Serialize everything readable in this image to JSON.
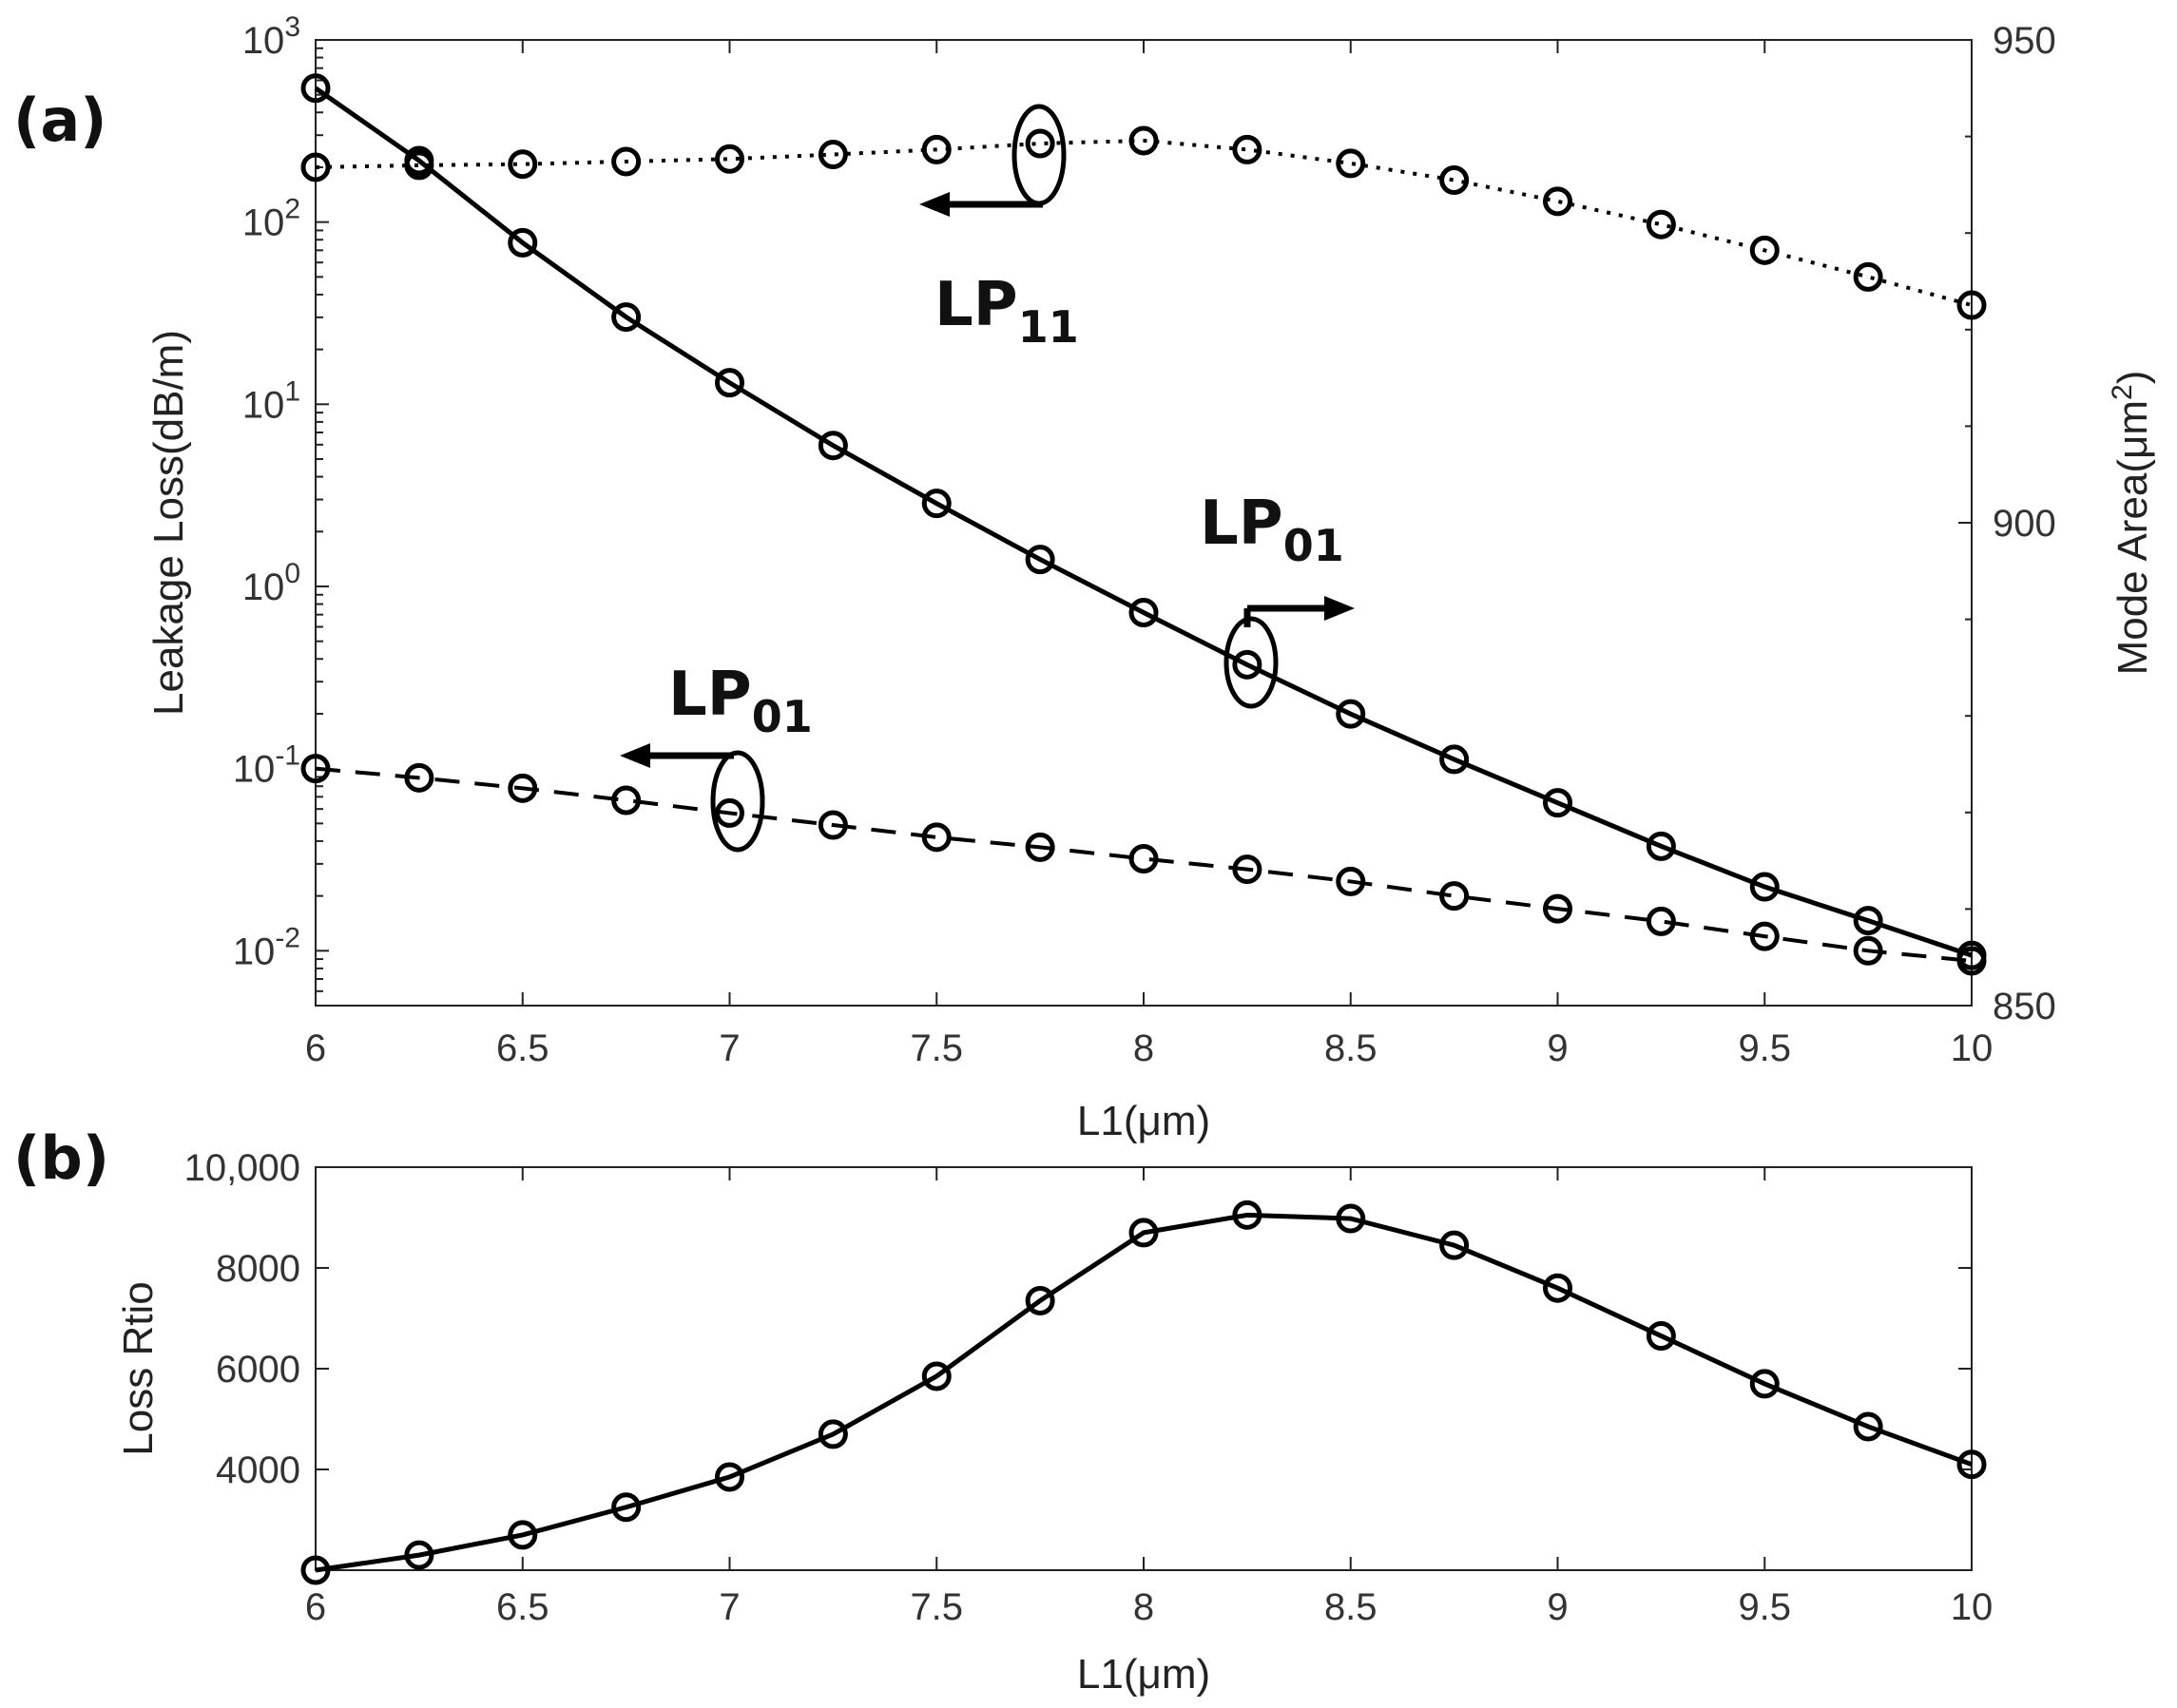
{
  "colors": {
    "line": "#000000",
    "axis": "#222222",
    "tick_text": "#333333",
    "background": "#ffffff"
  },
  "chart_data": [
    {
      "panel_label": "(a)",
      "type": "line",
      "xlabel": "L1(μm)",
      "ylabel_left": "Leakage Loss(dB/m)",
      "ylabel_right": "Mode Area(μm²)",
      "ylabel_right_parts": {
        "base": "Mode Area(μm",
        "sup": "2",
        "close": ")"
      },
      "xlim": [
        6,
        10
      ],
      "ylim_left": [
        0.005,
        1000
      ],
      "yscale_left": "log",
      "ylim_right": [
        850,
        950
      ],
      "x_ticks": [
        "6",
        "6.5",
        "7",
        "7.5",
        "8",
        "8.5",
        "9",
        "9.5",
        "10"
      ],
      "y_ticks_left": [
        {
          "base": "10",
          "exp": "3",
          "value": 1000
        },
        {
          "base": "10",
          "exp": "2",
          "value": 100
        },
        {
          "base": "10",
          "exp": "1",
          "value": 10
        },
        {
          "base": "10",
          "exp": "0",
          "value": 1
        },
        {
          "base": "10",
          "exp": "-1",
          "value": 0.1
        },
        {
          "base": "10",
          "exp": "-2",
          "value": 0.01
        }
      ],
      "y_ticks_right": [
        "950",
        "900",
        "850"
      ],
      "x": [
        6,
        6.25,
        6.5,
        6.75,
        7,
        7.25,
        7.5,
        7.75,
        8,
        8.25,
        8.5,
        8.75,
        9,
        9.25,
        9.5,
        9.75,
        10
      ],
      "series": [
        {
          "name": "LP11 leakage loss",
          "axis": "left",
          "style": "dotted",
          "values": [
            200,
            205,
            208,
            215,
            222,
            235,
            250,
            270,
            280,
            250,
            210,
            170,
            130,
            97,
            70,
            50,
            35
          ]
        },
        {
          "name": "LP01 leakage loss",
          "axis": "left",
          "style": "dashed",
          "values": [
            0.1,
            0.089,
            0.078,
            0.067,
            0.057,
            0.049,
            0.042,
            0.037,
            0.032,
            0.028,
            0.024,
            0.02,
            0.017,
            0.0145,
            0.012,
            0.01,
            0.0088
          ]
        },
        {
          "name": "LP01 mode area",
          "axis": "right",
          "style": "solid",
          "values": [
            945,
            937.5,
            929,
            921.3,
            914.5,
            908,
            902,
            896.2,
            890.7,
            885.3,
            880.2,
            875.5,
            871,
            866.5,
            862.3,
            858.8,
            855.2
          ]
        }
      ],
      "annotations": [
        {
          "base": "LP",
          "sub": "11",
          "refers_to": "LP11 leakage loss",
          "arrow": "left"
        },
        {
          "base": "LP",
          "sub": "01",
          "refers_to": "LP01 mode area",
          "arrow": "right"
        },
        {
          "base": "LP",
          "sub": "01",
          "refers_to": "LP01 leakage loss",
          "arrow": "left"
        }
      ],
      "grid": false
    },
    {
      "panel_label": "(b)",
      "type": "line",
      "xlabel": "L1(μm)",
      "ylabel": "Loss Rtio",
      "xlim": [
        6,
        10
      ],
      "ylim": [
        2000,
        10000
      ],
      "x_ticks": [
        "6",
        "6.5",
        "7",
        "7.5",
        "8",
        "8.5",
        "9",
        "9.5",
        "10"
      ],
      "y_ticks": [
        {
          "label": "10,000",
          "value": 10000
        },
        {
          "label": "8000",
          "value": 8000
        },
        {
          "label": "6000",
          "value": 6000
        },
        {
          "label": "4000",
          "value": 4000
        }
      ],
      "x": [
        6,
        6.25,
        6.5,
        6.75,
        7,
        7.25,
        7.5,
        7.75,
        8,
        8.25,
        8.5,
        8.75,
        9,
        9.25,
        9.5,
        9.75,
        10
      ],
      "series": [
        {
          "name": "Loss ratio",
          "style": "solid",
          "values": [
            2000,
            2300,
            2700,
            3250,
            3850,
            4700,
            5850,
            7350,
            8700,
            9050,
            8980,
            8450,
            7600,
            6650,
            5700,
            4850,
            4100
          ]
        }
      ],
      "grid": false
    }
  ]
}
